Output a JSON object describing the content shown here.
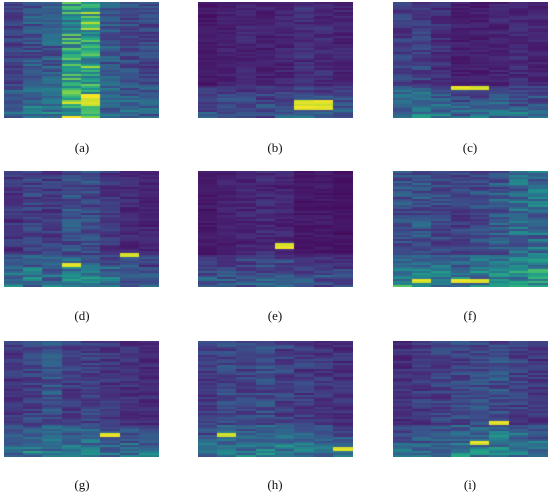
{
  "figure": {
    "colormap": "viridis",
    "background": "#ffffff",
    "panels": [
      {
        "id": "a",
        "caption": "(a)"
      },
      {
        "id": "b",
        "caption": "(b)"
      },
      {
        "id": "c",
        "caption": "(c)"
      },
      {
        "id": "d",
        "caption": "(d)"
      },
      {
        "id": "e",
        "caption": "(e)"
      },
      {
        "id": "f",
        "caption": "(f)"
      },
      {
        "id": "g",
        "caption": "(g)"
      },
      {
        "id": "h",
        "caption": "(h)"
      },
      {
        "id": "i",
        "caption": "(i)"
      }
    ]
  }
}
